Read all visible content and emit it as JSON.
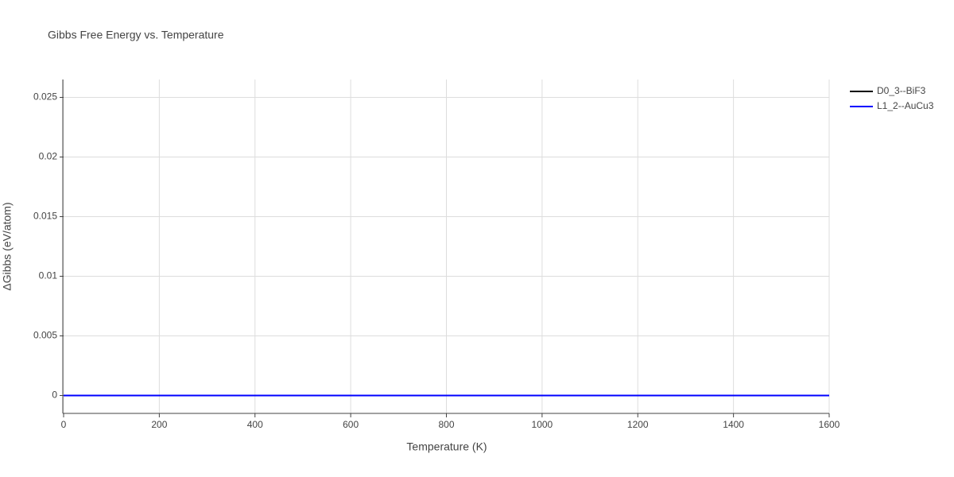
{
  "chart_data": {
    "type": "line",
    "title": "Gibbs Free Energy vs. Temperature",
    "x_label": "Temperature (K)",
    "y_label": "ΔGibbs (eV/atom)",
    "x": [
      0,
      100,
      200,
      300,
      400,
      500,
      600,
      700,
      800,
      900,
      1000,
      1100,
      1200,
      1300,
      1400,
      1500,
      1600
    ],
    "series": [
      {
        "name": "D0_3--BiF3",
        "color": "#000000",
        "values": [
          0,
          0,
          0,
          0,
          0,
          0,
          0,
          0,
          0,
          0,
          0,
          0,
          0,
          0,
          0,
          0,
          0
        ]
      },
      {
        "name": "L1_2--AuCu3",
        "color": "#0000ff",
        "values": [
          0,
          0,
          0,
          0,
          0,
          0,
          0,
          0,
          0,
          0,
          0,
          0,
          0,
          0,
          0,
          0,
          0
        ]
      }
    ],
    "xlim": [
      0,
      1600
    ],
    "xticks": [
      0,
      200,
      400,
      600,
      800,
      1000,
      1200,
      1400,
      1600
    ],
    "ylim": [
      -0.0015,
      0.0265
    ],
    "yticks": [
      0,
      0.005,
      0.01,
      0.015,
      0.02,
      0.025
    ],
    "grid": true,
    "legend": "outside-top-right"
  }
}
